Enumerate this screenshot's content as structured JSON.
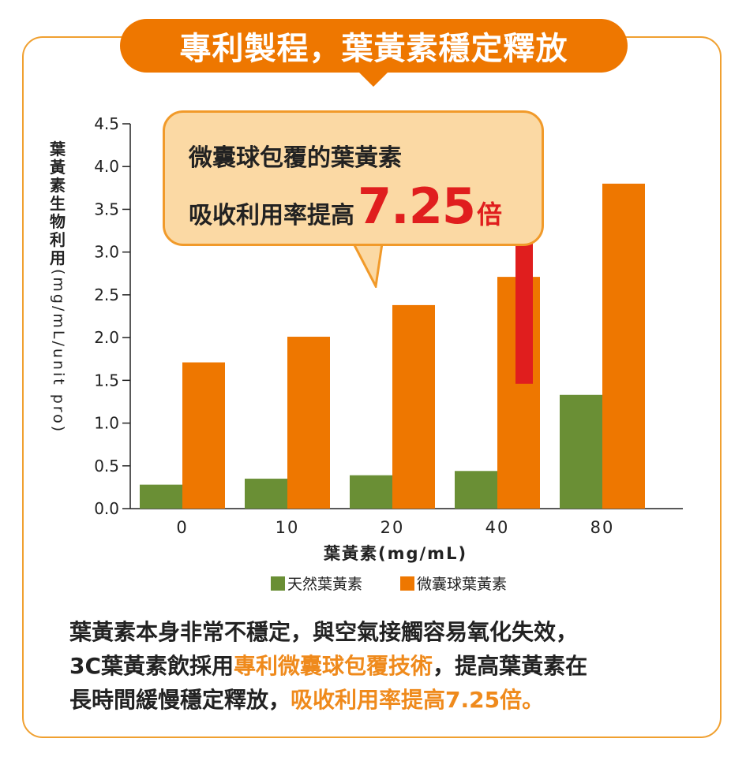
{
  "title": "專利製程，葉黃素穩定釋放",
  "callout": {
    "line1": "微囊球包覆的葉黃素",
    "line2_prefix": "吸收利用率提高",
    "line2_number": "7.25",
    "line2_suffix": "倍"
  },
  "paragraph": {
    "line1": "葉黃素本身非常不穩定，與空氣接觸容易氧化失效，",
    "line2_a": "3C葉黃素飲採用",
    "line2_b": "專利微囊球包覆技術",
    "line2_c": "，提高葉黃素在",
    "line3_a": "長時間緩慢穩定釋放，",
    "line3_b": "吸收利用率提高7.25倍。"
  },
  "colors": {
    "accent": "#ee7700",
    "natural": "#6a8f35",
    "micro": "#ee7700",
    "arrow": "#e01e1e",
    "highlight": "#ef8a1c"
  },
  "icons": {
    "arrow": "up-arrow-icon"
  },
  "chart_data": {
    "type": "bar",
    "ylabel_cjk": [
      "葉",
      "黃",
      "素",
      "生",
      "物",
      "利",
      "用"
    ],
    "ylabel_unit": "(mg/mL/unit pro)",
    "xlabel": "葉黃素(mg/mL)",
    "categories": [
      "0",
      "10",
      "20",
      "40",
      "80"
    ],
    "ylim": [
      0,
      4.5
    ],
    "yticks": [
      "0.0",
      "0.5",
      "1.0",
      "1.5",
      "2.0",
      "2.5",
      "3.0",
      "3.5",
      "4.0",
      "4.5"
    ],
    "series": [
      {
        "name": "天然葉黃素",
        "values": [
          0.28,
          0.35,
          0.39,
          0.44,
          1.33
        ]
      },
      {
        "name": "微囊球葉黃素",
        "values": [
          1.71,
          2.01,
          2.38,
          2.71,
          3.8
        ]
      }
    ],
    "grid": false,
    "legend": "bottom"
  }
}
